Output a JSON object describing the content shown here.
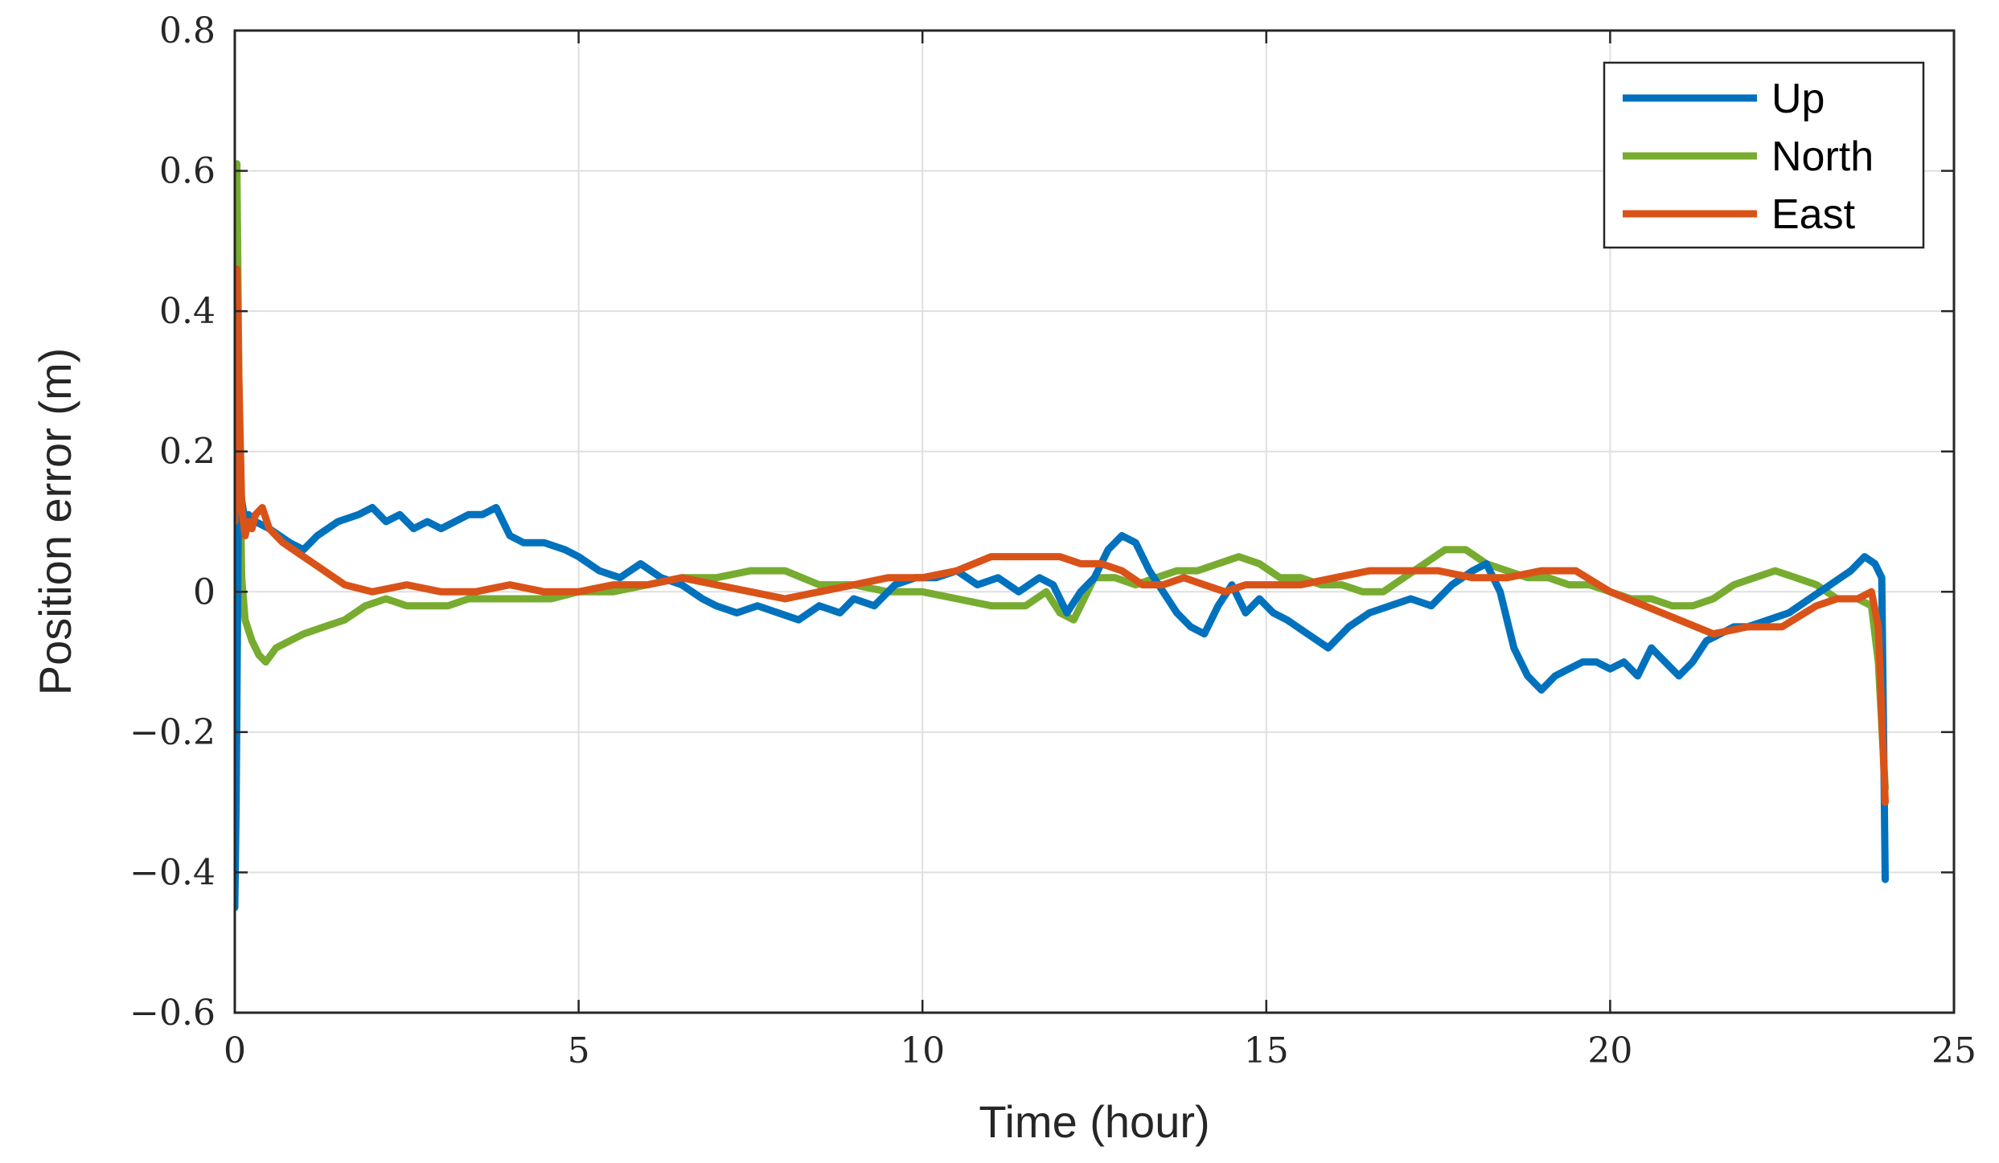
{
  "chart_data": {
    "type": "line",
    "xlabel": "Time (hour)",
    "ylabel": "Position error (m)",
    "xlim": [
      0,
      25
    ],
    "ylim": [
      -0.6,
      0.8
    ],
    "xticks": [
      0,
      5,
      10,
      15,
      20,
      25
    ],
    "xtick_labels": [
      "0",
      "5",
      "10",
      "15",
      "20",
      "25"
    ],
    "yticks": [
      -0.6,
      -0.4,
      -0.2,
      0,
      0.2,
      0.4,
      0.6,
      0.8
    ],
    "ytick_labels": [
      "−0.6",
      "−0.4",
      "−0.2",
      "0",
      "0.2",
      "0.4",
      "0.6",
      "0.8"
    ],
    "grid": true,
    "legend_position": "top-right",
    "series": [
      {
        "name": "Up",
        "color": "#0072bd",
        "x": [
          0,
          0.02,
          0.05,
          0.08,
          0.1,
          0.15,
          0.2,
          0.3,
          0.5,
          0.8,
          1.0,
          1.2,
          1.5,
          1.8,
          2.0,
          2.2,
          2.4,
          2.6,
          2.8,
          3.0,
          3.2,
          3.4,
          3.6,
          3.8,
          4.0,
          4.2,
          4.5,
          4.8,
          5.0,
          5.3,
          5.6,
          5.9,
          6.2,
          6.5,
          6.8,
          7.0,
          7.3,
          7.6,
          7.9,
          8.2,
          8.5,
          8.8,
          9.0,
          9.3,
          9.6,
          9.9,
          10.2,
          10.5,
          10.8,
          11.1,
          11.4,
          11.7,
          11.9,
          12.1,
          12.3,
          12.5,
          12.7,
          12.9,
          13.1,
          13.3,
          13.5,
          13.7,
          13.9,
          14.1,
          14.3,
          14.5,
          14.7,
          14.9,
          15.1,
          15.3,
          15.6,
          15.9,
          16.2,
          16.5,
          16.8,
          17.1,
          17.4,
          17.7,
          18.0,
          18.2,
          18.4,
          18.6,
          18.8,
          19.0,
          19.2,
          19.4,
          19.6,
          19.8,
          20.0,
          20.2,
          20.4,
          20.6,
          20.8,
          21.0,
          21.2,
          21.4,
          21.6,
          21.8,
          22.0,
          22.3,
          22.6,
          22.9,
          23.2,
          23.5,
          23.7,
          23.85,
          23.95,
          24.0
        ],
        "values": [
          -0.45,
          -0.3,
          0.1,
          0.15,
          0.13,
          0.1,
          0.11,
          0.1,
          0.09,
          0.07,
          0.06,
          0.08,
          0.1,
          0.11,
          0.12,
          0.1,
          0.11,
          0.09,
          0.1,
          0.09,
          0.1,
          0.11,
          0.11,
          0.12,
          0.08,
          0.07,
          0.07,
          0.06,
          0.05,
          0.03,
          0.02,
          0.04,
          0.02,
          0.01,
          -0.01,
          -0.02,
          -0.03,
          -0.02,
          -0.03,
          -0.04,
          -0.02,
          -0.03,
          -0.01,
          -0.02,
          0.01,
          0.02,
          0.02,
          0.03,
          0.01,
          0.02,
          0.0,
          0.02,
          0.01,
          -0.03,
          0.0,
          0.02,
          0.06,
          0.08,
          0.07,
          0.03,
          0.0,
          -0.03,
          -0.05,
          -0.06,
          -0.02,
          0.01,
          -0.03,
          -0.01,
          -0.03,
          -0.04,
          -0.06,
          -0.08,
          -0.05,
          -0.03,
          -0.02,
          -0.01,
          -0.02,
          0.01,
          0.03,
          0.04,
          0.0,
          -0.08,
          -0.12,
          -0.14,
          -0.12,
          -0.11,
          -0.1,
          -0.1,
          -0.11,
          -0.1,
          -0.12,
          -0.08,
          -0.1,
          -0.12,
          -0.1,
          -0.07,
          -0.06,
          -0.05,
          -0.05,
          -0.04,
          -0.03,
          -0.01,
          0.01,
          0.03,
          0.05,
          0.04,
          0.02,
          -0.41
        ]
      },
      {
        "name": "North",
        "color": "#77ac30",
        "x": [
          0,
          0.03,
          0.06,
          0.1,
          0.15,
          0.25,
          0.35,
          0.45,
          0.6,
          0.8,
          1.0,
          1.3,
          1.6,
          1.9,
          2.2,
          2.5,
          2.8,
          3.1,
          3.4,
          3.7,
          4.0,
          4.3,
          4.6,
          5.0,
          5.5,
          6.0,
          6.5,
          7.0,
          7.5,
          8.0,
          8.5,
          9.0,
          9.5,
          10.0,
          10.5,
          11.0,
          11.5,
          11.8,
          12.0,
          12.2,
          12.5,
          12.8,
          13.1,
          13.4,
          13.7,
          14.0,
          14.3,
          14.6,
          14.9,
          15.2,
          15.5,
          15.8,
          16.1,
          16.4,
          16.7,
          17.0,
          17.3,
          17.6,
          17.9,
          18.2,
          18.5,
          18.8,
          19.1,
          19.4,
          19.7,
          20.0,
          20.3,
          20.6,
          20.9,
          21.2,
          21.5,
          21.8,
          22.1,
          22.4,
          22.7,
          23.0,
          23.3,
          23.6,
          23.8,
          23.9,
          24.0
        ],
        "values": [
          0.48,
          0.61,
          0.3,
          0.02,
          -0.04,
          -0.07,
          -0.09,
          -0.1,
          -0.08,
          -0.07,
          -0.06,
          -0.05,
          -0.04,
          -0.02,
          -0.01,
          -0.02,
          -0.02,
          -0.02,
          -0.01,
          -0.01,
          -0.01,
          -0.01,
          -0.01,
          0.0,
          0.0,
          0.01,
          0.02,
          0.02,
          0.03,
          0.03,
          0.01,
          0.01,
          0.0,
          0.0,
          -0.01,
          -0.02,
          -0.02,
          0.0,
          -0.03,
          -0.04,
          0.02,
          0.02,
          0.01,
          0.02,
          0.03,
          0.03,
          0.04,
          0.05,
          0.04,
          0.02,
          0.02,
          0.01,
          0.01,
          0.0,
          0.0,
          0.02,
          0.04,
          0.06,
          0.06,
          0.04,
          0.03,
          0.02,
          0.02,
          0.01,
          0.01,
          0.0,
          -0.01,
          -0.01,
          -0.02,
          -0.02,
          -0.01,
          0.01,
          0.02,
          0.03,
          0.02,
          0.01,
          -0.01,
          -0.01,
          -0.02,
          -0.1,
          -0.28
        ]
      },
      {
        "name": "East",
        "color": "#d95319",
        "x": [
          0,
          0.03,
          0.06,
          0.1,
          0.15,
          0.2,
          0.25,
          0.3,
          0.4,
          0.5,
          0.7,
          1.0,
          1.3,
          1.6,
          2.0,
          2.5,
          3.0,
          3.5,
          4.0,
          4.5,
          5.0,
          5.5,
          6.0,
          6.5,
          7.0,
          7.5,
          8.0,
          8.5,
          9.0,
          9.5,
          10.0,
          10.5,
          11.0,
          11.5,
          12.0,
          12.3,
          12.6,
          12.9,
          13.2,
          13.5,
          13.8,
          14.1,
          14.4,
          14.7,
          15.0,
          15.5,
          16.0,
          16.5,
          17.0,
          17.5,
          18.0,
          18.5,
          19.0,
          19.5,
          20.0,
          20.5,
          21.0,
          21.5,
          22.0,
          22.5,
          23.0,
          23.3,
          23.6,
          23.8,
          23.9,
          24.0
        ],
        "values": [
          0.1,
          0.46,
          0.3,
          0.12,
          0.08,
          0.1,
          0.09,
          0.11,
          0.12,
          0.09,
          0.07,
          0.05,
          0.03,
          0.01,
          0.0,
          0.01,
          0.0,
          0.0,
          0.01,
          0.0,
          0.0,
          0.01,
          0.01,
          0.02,
          0.01,
          0.0,
          -0.01,
          0.0,
          0.01,
          0.02,
          0.02,
          0.03,
          0.05,
          0.05,
          0.05,
          0.04,
          0.04,
          0.03,
          0.01,
          0.01,
          0.02,
          0.01,
          0.0,
          0.01,
          0.01,
          0.01,
          0.02,
          0.03,
          0.03,
          0.03,
          0.02,
          0.02,
          0.03,
          0.03,
          0.0,
          -0.02,
          -0.04,
          -0.06,
          -0.05,
          -0.05,
          -0.02,
          -0.01,
          -0.01,
          0.0,
          -0.05,
          -0.3
        ]
      }
    ]
  }
}
